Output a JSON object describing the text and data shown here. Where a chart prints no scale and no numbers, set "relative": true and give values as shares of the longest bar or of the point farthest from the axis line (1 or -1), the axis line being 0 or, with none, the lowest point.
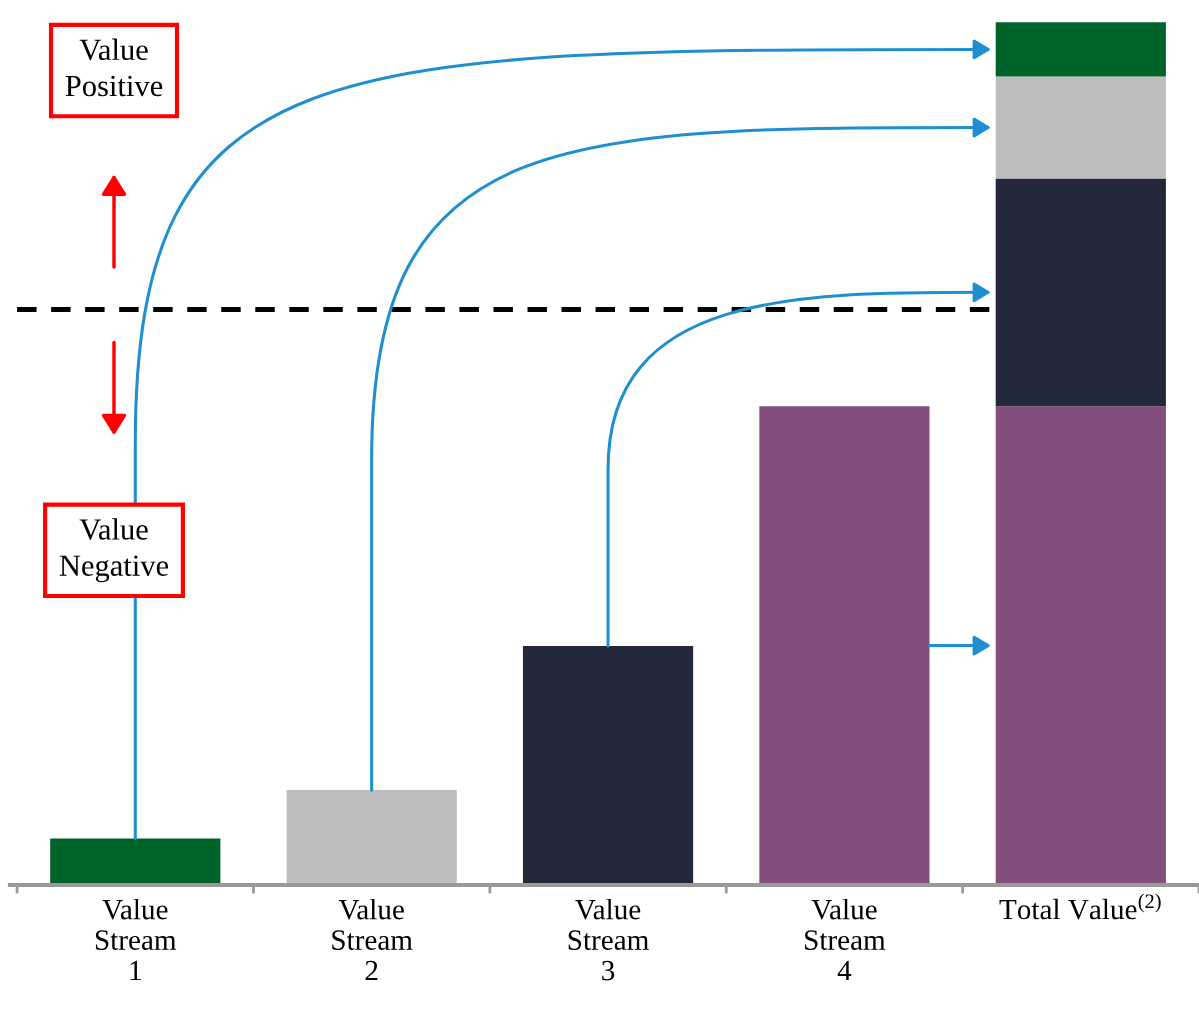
{
  "chart_data": {
    "type": "bar",
    "stacked": true,
    "relative": true,
    "categories": [
      "Value\nStream\n1",
      "Value\nStream\n2",
      "Value\nStream\n3",
      "Value\nStream\n4",
      "Total Value$^{(2)}$"
    ],
    "series": [
      {
        "color": "#834e7c",
        "values": [
          null,
          null,
          null,
          0.555,
          0.555
        ]
      },
      {
        "color": "#23283b",
        "values": [
          null,
          null,
          0.277,
          null,
          0.264
        ]
      },
      {
        "color": "#bebebe",
        "values": [
          null,
          0.11,
          null,
          null,
          0.118
        ]
      },
      {
        "color": "#00632a",
        "values": [
          0.054,
          null,
          null,
          null,
          0.063
        ]
      }
    ],
    "ref_lines": [
      {
        "axis": "y",
        "value": 0.667,
        "color": "#000000",
        "line_style": "dashed"
      }
    ],
    "annotations": [
      "Value\nPositive",
      "Value\nNegative"
    ],
    "grid": false,
    "legend": false
  }
}
